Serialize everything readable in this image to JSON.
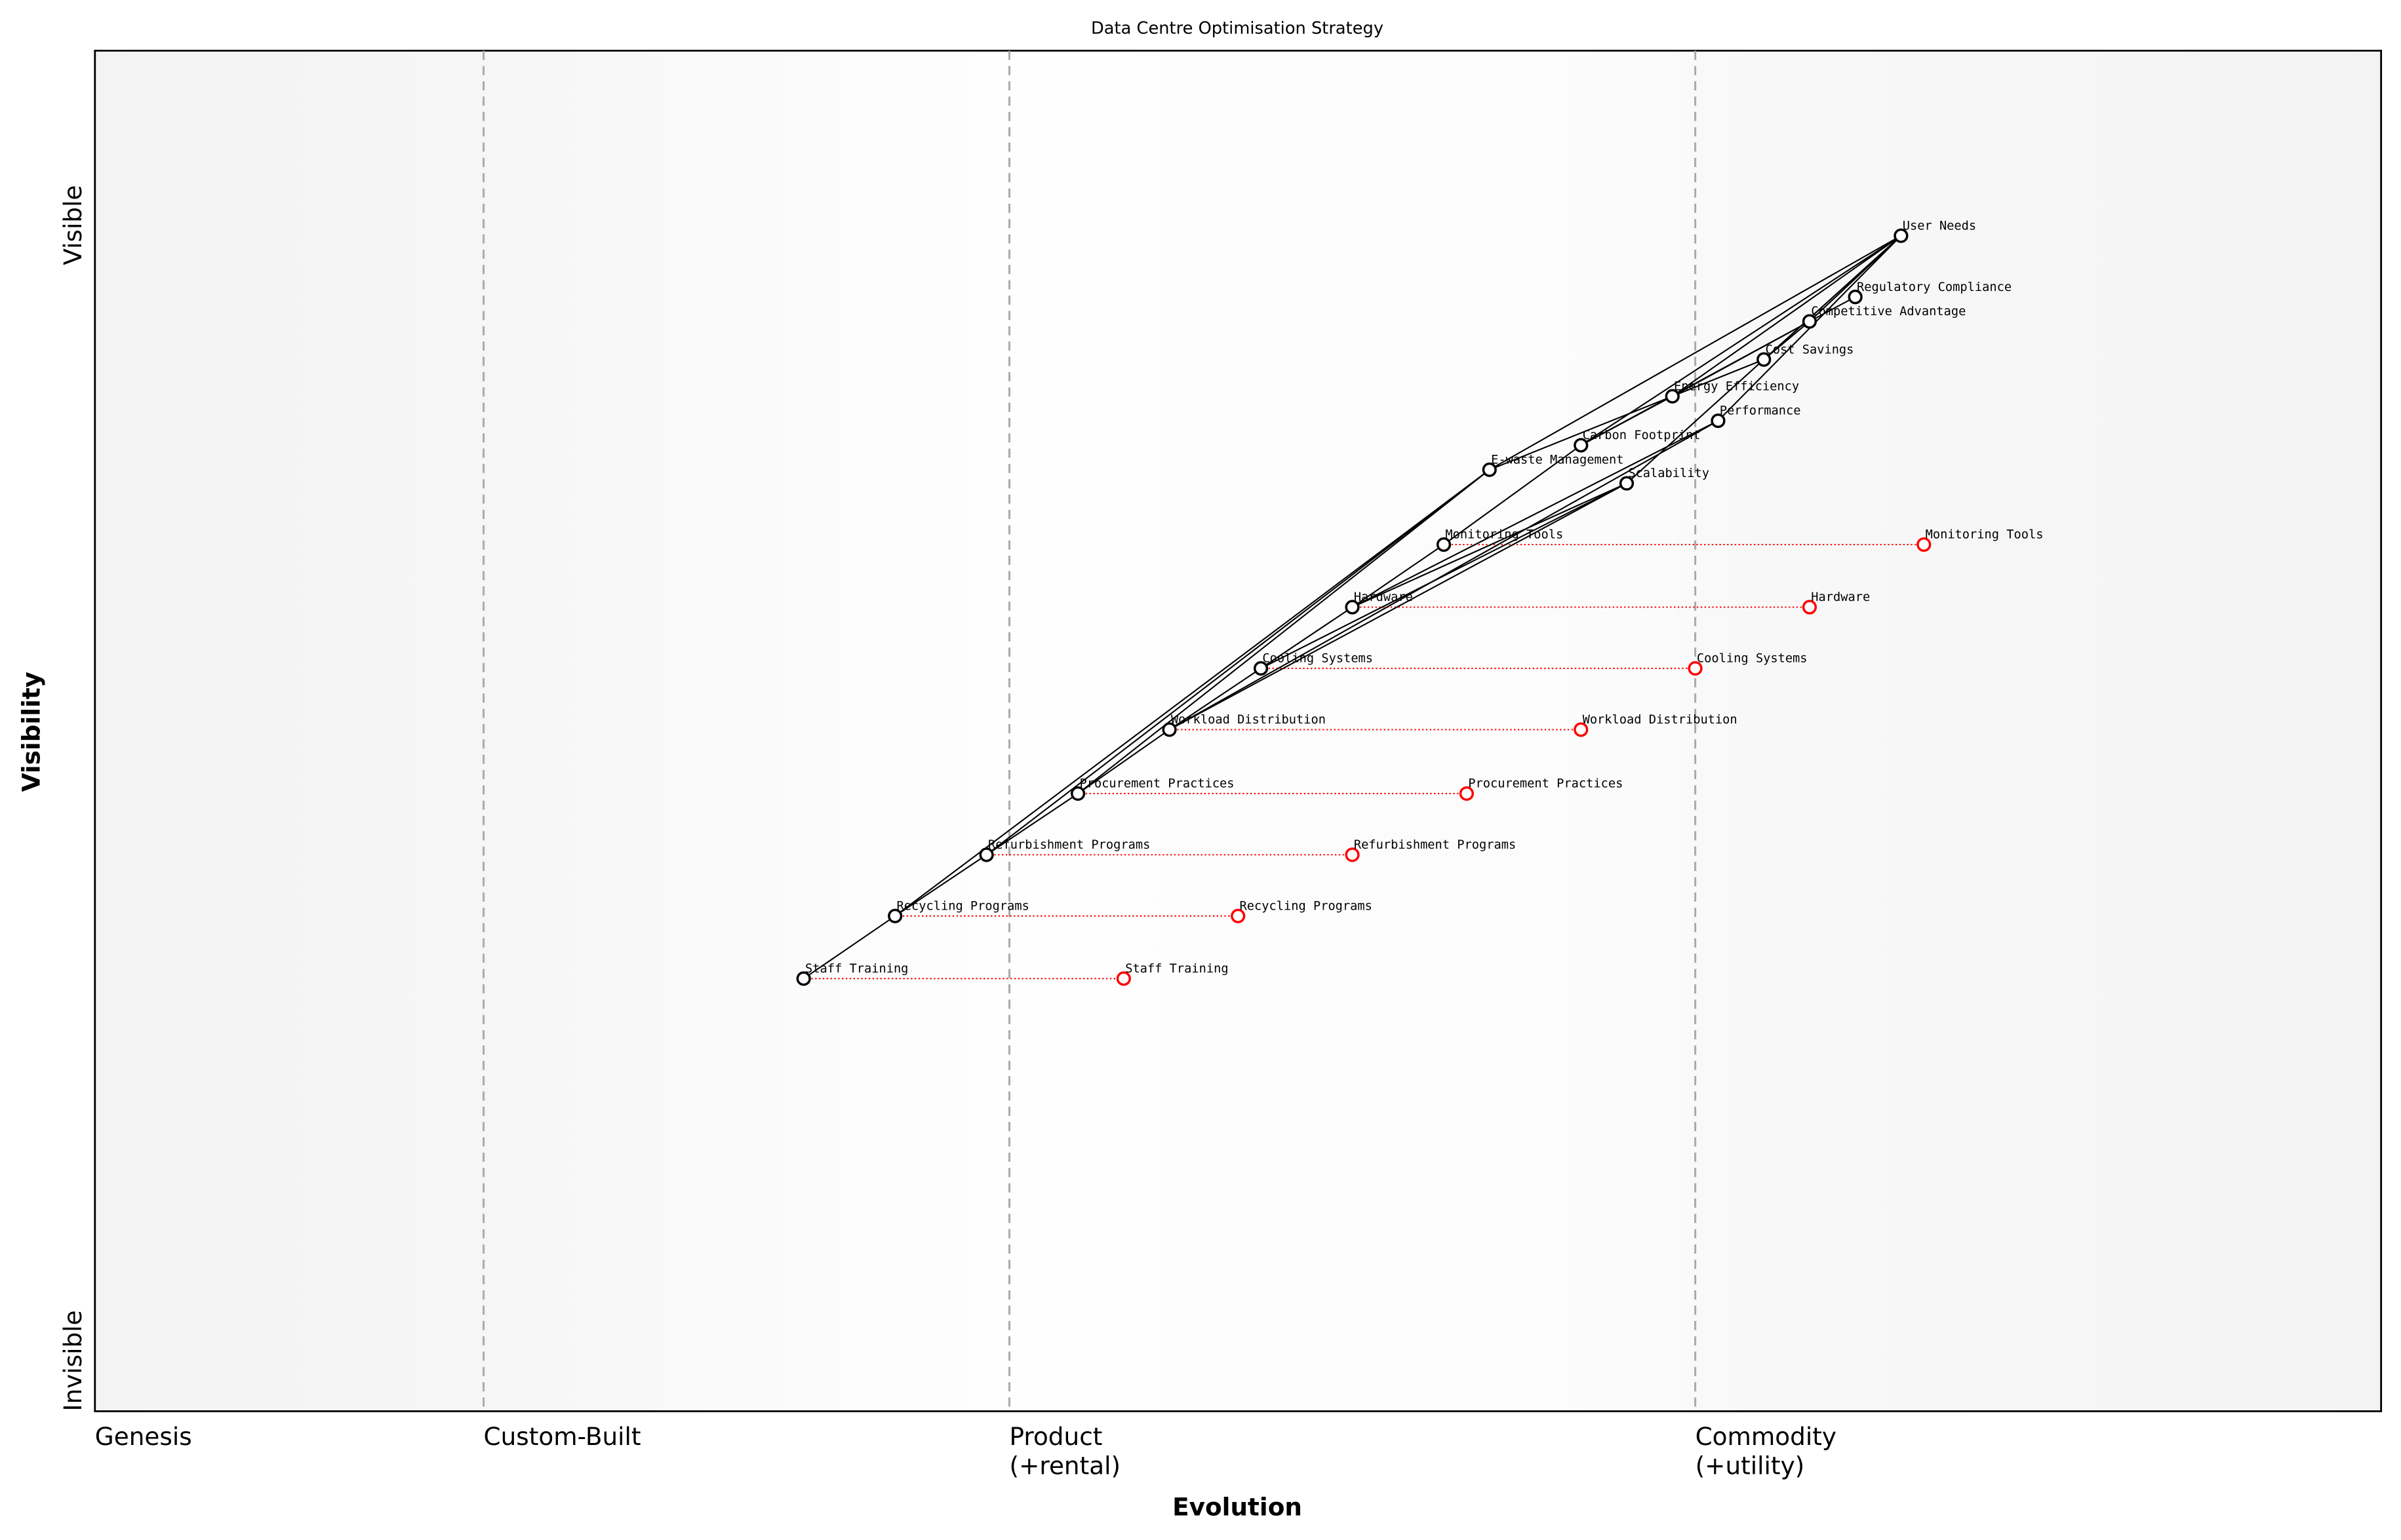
{
  "chart_data": {
    "type": "wardley-map",
    "title": "Data Centre Optimisation Strategy",
    "xlabel": "Evolution",
    "ylabel": "Visibility",
    "xlim": [
      0,
      1
    ],
    "ylim": [
      0,
      1
    ],
    "y_ticks": {
      "top": "Visible",
      "bottom": "Invisible"
    },
    "stages": [
      {
        "label": "Genesis",
        "x": 0.0
      },
      {
        "label": "Custom-Built",
        "x": 0.17
      },
      {
        "label": "Product\n(+rental)",
        "x": 0.4
      },
      {
        "label": "Commodity\n(+utility)",
        "x": 0.7
      }
    ],
    "components": [
      {
        "name": "User Needs",
        "x": 0.79,
        "y": 0.864
      },
      {
        "name": "Regulatory Compliance",
        "x": 0.77,
        "y": 0.819
      },
      {
        "name": "Competitive Advantage",
        "x": 0.75,
        "y": 0.801
      },
      {
        "name": "Cost Savings",
        "x": 0.73,
        "y": 0.773
      },
      {
        "name": "Energy Efficiency",
        "x": 0.69,
        "y": 0.746
      },
      {
        "name": "Performance",
        "x": 0.71,
        "y": 0.728
      },
      {
        "name": "Carbon Footprint",
        "x": 0.65,
        "y": 0.71
      },
      {
        "name": "E-waste Management",
        "x": 0.61,
        "y": 0.692
      },
      {
        "name": "Scalability",
        "x": 0.67,
        "y": 0.682
      },
      {
        "name": "Monitoring Tools",
        "x": 0.59,
        "y": 0.637
      },
      {
        "name": "Hardware",
        "x": 0.55,
        "y": 0.591
      },
      {
        "name": "Cooling Systems",
        "x": 0.51,
        "y": 0.546
      },
      {
        "name": "Workload Distribution",
        "x": 0.47,
        "y": 0.501
      },
      {
        "name": "Procurement Practices",
        "x": 0.43,
        "y": 0.454
      },
      {
        "name": "Refurbishment Programs",
        "x": 0.39,
        "y": 0.409
      },
      {
        "name": "Recycling Programs",
        "x": 0.35,
        "y": 0.364
      },
      {
        "name": "Staff Training",
        "x": 0.31,
        "y": 0.318
      }
    ],
    "evolutions": [
      {
        "name": "Monitoring Tools",
        "to_x": 0.8
      },
      {
        "name": "Hardware",
        "to_x": 0.75
      },
      {
        "name": "Cooling Systems",
        "to_x": 0.7
      },
      {
        "name": "Workload Distribution",
        "to_x": 0.65
      },
      {
        "name": "Procurement Practices",
        "to_x": 0.6
      },
      {
        "name": "Refurbishment Programs",
        "to_x": 0.55
      },
      {
        "name": "Recycling Programs",
        "to_x": 0.5
      },
      {
        "name": "Staff Training",
        "to_x": 0.45
      }
    ],
    "edges": [
      [
        "User Needs",
        "Competitive Advantage"
      ],
      [
        "User Needs",
        "Cost Savings"
      ],
      [
        "User Needs",
        "Energy Efficiency"
      ],
      [
        "User Needs",
        "E-waste Management"
      ],
      [
        "User Needs",
        "Performance"
      ],
      [
        "User Needs",
        "Scalability"
      ],
      [
        "User Needs",
        "Carbon Footprint"
      ],
      [
        "Competitive Advantage",
        "Regulatory Compliance"
      ],
      [
        "Competitive Advantage",
        "Energy Efficiency"
      ],
      [
        "Competitive Advantage",
        "Carbon Footprint"
      ],
      [
        "Competitive Advantage",
        "Cost Savings"
      ],
      [
        "Cost Savings",
        "Energy Efficiency"
      ],
      [
        "Energy Efficiency",
        "Carbon Footprint"
      ],
      [
        "Energy Efficiency",
        "E-waste Management"
      ],
      [
        "Carbon Footprint",
        "Monitoring Tools"
      ],
      [
        "E-waste Management",
        "Recycling Programs"
      ],
      [
        "E-waste Management",
        "Refurbishment Programs"
      ],
      [
        "E-waste Management",
        "Procurement Practices"
      ],
      [
        "Scalability",
        "Workload Distribution"
      ],
      [
        "Scalability",
        "Cooling Systems"
      ],
      [
        "Scalability",
        "Hardware"
      ],
      [
        "Performance",
        "Hardware"
      ],
      [
        "Performance",
        "Workload Distribution"
      ],
      [
        "Monitoring Tools",
        "Hardware"
      ],
      [
        "Hardware",
        "Cooling Systems"
      ],
      [
        "Cooling Systems",
        "Workload Distribution"
      ],
      [
        "Workload Distribution",
        "Procurement Practices"
      ],
      [
        "Procurement Practices",
        "Refurbishment Programs"
      ],
      [
        "Refurbishment Programs",
        "Recycling Programs"
      ],
      [
        "Recycling Programs",
        "Staff Training"
      ]
    ],
    "colors": {
      "component": "#000000",
      "evolution": "#ff0000",
      "stage_line": "#aaaaaa"
    }
  }
}
